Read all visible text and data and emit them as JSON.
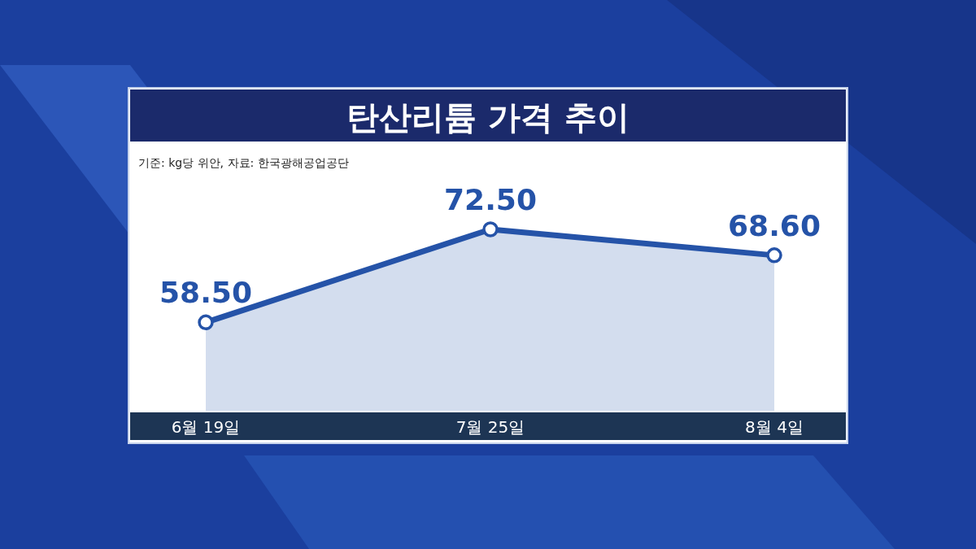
{
  "chart_data": {
    "type": "area",
    "title": "탄산리튬 가격 추이",
    "annotations": [
      "기준: kg당 위안, 자료: 한국광해공업공단"
    ],
    "categories": [
      "6월 19일",
      "7월 25일",
      "8월 4일"
    ],
    "values": [
      58.5,
      72.5,
      68.6
    ],
    "value_labels": [
      "58.50",
      "72.50",
      "68.60"
    ],
    "color": "#2553a8",
    "marker": "circle"
  }
}
